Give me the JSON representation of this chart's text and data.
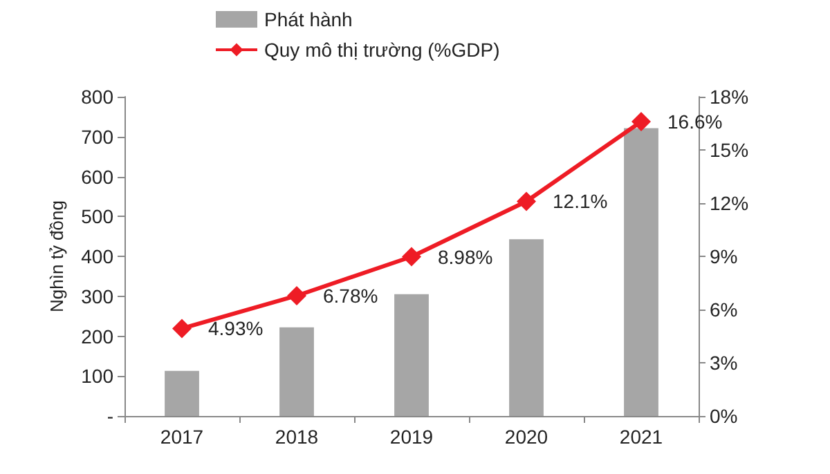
{
  "chart_data": {
    "type": "bar",
    "ylabel": "Nghìn tỷ đồng",
    "categories": [
      "2017",
      "2018",
      "2019",
      "2020",
      "2021"
    ],
    "series": [
      {
        "name": "Phát hành",
        "color": "#a6a6a6",
        "values": [
          113,
          222,
          305,
          443,
          721
        ]
      },
      {
        "name": "Quy mô thị trường (%GDP)",
        "type": "line",
        "axis": "y2",
        "color": "#ee1c25",
        "marker": "diamond",
        "values": [
          4.93,
          6.78,
          8.98,
          12.1,
          16.6
        ],
        "value_labels": [
          "4.93%",
          "6.78%",
          "8.98%",
          "12.1%",
          "16.6%"
        ]
      }
    ],
    "ylim": [
      0,
      800
    ],
    "yticks": [
      {
        "value": 0,
        "label": "-"
      },
      100,
      200,
      300,
      400,
      500,
      600,
      700,
      800
    ],
    "y2lim": [
      0,
      18
    ],
    "y2ticks": [
      {
        "value": 0,
        "label": "0%"
      },
      {
        "value": 3,
        "label": "3%"
      },
      {
        "value": 6,
        "label": "6%"
      },
      {
        "value": 9,
        "label": "9%"
      },
      {
        "value": 12,
        "label": "12%"
      },
      {
        "value": 15,
        "label": "15%"
      },
      {
        "value": 18,
        "label": "18%"
      }
    ],
    "grid": false,
    "legend": "top"
  }
}
